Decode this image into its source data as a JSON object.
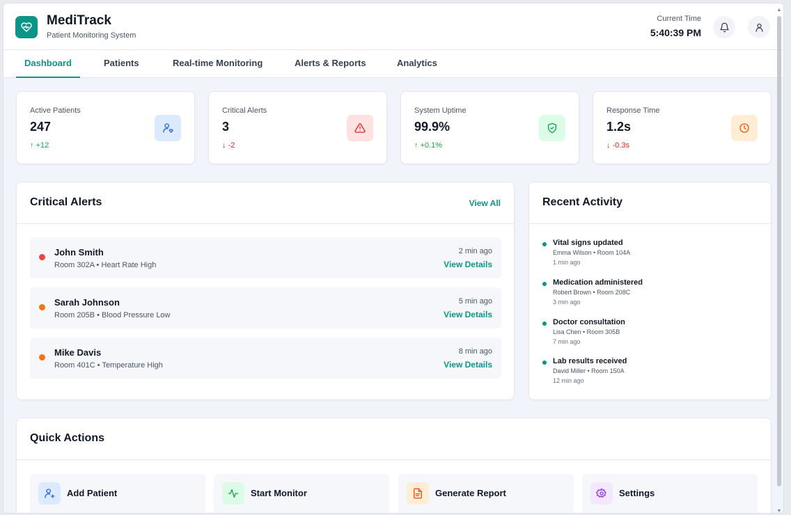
{
  "brand": {
    "name": "MediTrack",
    "subtitle": "Patient Monitoring System"
  },
  "header": {
    "time_label": "Current Time",
    "time_value": "5:40:39 PM"
  },
  "nav": {
    "tabs": [
      {
        "label": "Dashboard"
      },
      {
        "label": "Patients"
      },
      {
        "label": "Real-time Monitoring"
      },
      {
        "label": "Alerts & Reports"
      },
      {
        "label": "Analytics"
      }
    ],
    "active": "Dashboard"
  },
  "stats": [
    {
      "label": "Active Patients",
      "value": "247",
      "delta": "+12",
      "trend": "up",
      "icon": "user-heart-icon",
      "color": "#2563eb"
    },
    {
      "label": "Critical Alerts",
      "value": "3",
      "delta": "-2",
      "trend": "down",
      "icon": "warning-triangle-icon",
      "color": "#dc2626"
    },
    {
      "label": "System Uptime",
      "value": "99.9%",
      "delta": "+0.1%",
      "trend": "up",
      "icon": "shield-check-icon",
      "color": "#16a34a"
    },
    {
      "label": "Response Time",
      "value": "1.2s",
      "delta": "-0.3s",
      "trend": "down",
      "icon": "clock-icon",
      "color": "#ea580c"
    }
  ],
  "critical_alerts": {
    "title": "Critical Alerts",
    "view_all": "View All",
    "items": [
      {
        "name": "John Smith",
        "detail": "Room 302A • Heart Rate High",
        "time": "2 min ago",
        "link": "View Details",
        "color": "#ef4444"
      },
      {
        "name": "Sarah Johnson",
        "detail": "Room 205B • Blood Pressure Low",
        "time": "5 min ago",
        "link": "View Details",
        "color": "#f97316"
      },
      {
        "name": "Mike Davis",
        "detail": "Room 401C • Temperature High",
        "time": "8 min ago",
        "link": "View Details",
        "color": "#f97316"
      }
    ]
  },
  "recent_activity": {
    "title": "Recent Activity",
    "items": [
      {
        "title": "Vital signs updated",
        "sub": "Emma Wilson • Room 104A",
        "time": "1 min ago"
      },
      {
        "title": "Medication administered",
        "sub": "Robert Brown • Room 208C",
        "time": "3 min ago"
      },
      {
        "title": "Doctor consultation",
        "sub": "Lisa Chen • Room 305B",
        "time": "7 min ago"
      },
      {
        "title": "Lab results received",
        "sub": "David Miller • Room 150A",
        "time": "12 min ago"
      }
    ]
  },
  "quick_actions": {
    "title": "Quick Actions",
    "items": [
      {
        "label": "Add Patient",
        "icon": "user-plus-icon"
      },
      {
        "label": "Start Monitor",
        "icon": "pulse-icon"
      },
      {
        "label": "Generate Report",
        "icon": "document-icon"
      },
      {
        "label": "Settings",
        "icon": "gear-icon"
      }
    ]
  },
  "colors": {
    "accent": "#0d9488",
    "up": "#16a34a",
    "down": "#dc2626"
  }
}
